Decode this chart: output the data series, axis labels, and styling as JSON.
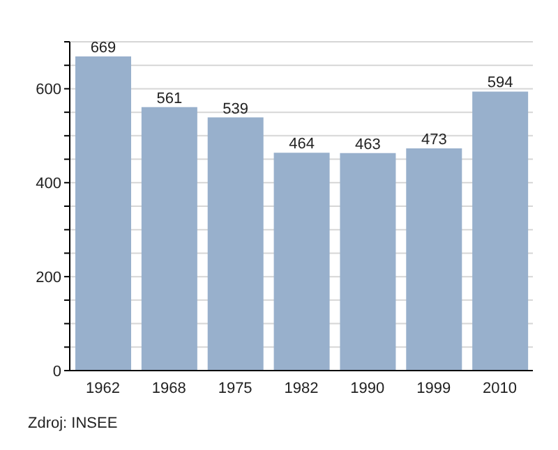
{
  "chart_data": {
    "type": "bar",
    "categories": [
      "1962",
      "1968",
      "1975",
      "1982",
      "1990",
      "1999",
      "2010"
    ],
    "values": [
      669,
      561,
      539,
      464,
      463,
      473,
      594
    ],
    "color": "#98b0cc",
    "data_labels": true,
    "ylim": [
      0,
      700
    ],
    "yticks": [
      0,
      {
        "value": 50,
        "label": null
      },
      {
        "value": 100,
        "label": null
      },
      {
        "value": 150,
        "label": null
      },
      200,
      {
        "value": 250,
        "label": null
      },
      {
        "value": 300,
        "label": null
      },
      {
        "value": 350,
        "label": null
      },
      400,
      {
        "value": 450,
        "label": null
      },
      {
        "value": 500,
        "label": null
      },
      {
        "value": 550,
        "label": null
      },
      600,
      {
        "value": 650,
        "label": null
      },
      {
        "value": 700,
        "label": null
      }
    ],
    "grid": "y",
    "annotations": [
      "Zdroj: INSEE"
    ]
  }
}
